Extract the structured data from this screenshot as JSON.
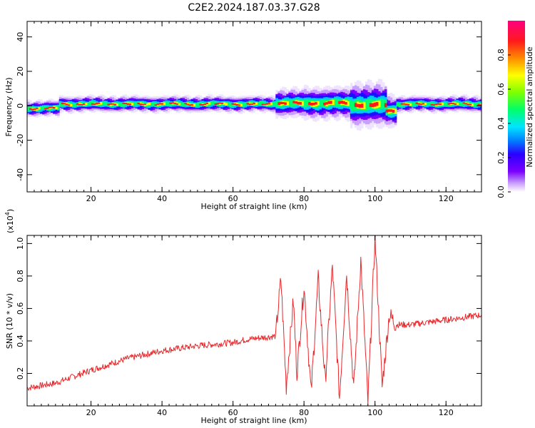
{
  "title": "C2E2.2024.187.03.37.G28",
  "colors": {
    "snr_line": "#e8282b",
    "spectrum_palette": [
      "#7a00ff",
      "#2a00ff",
      "#0080ff",
      "#00e5ff",
      "#00ff6a",
      "#7cff00",
      "#ffff00",
      "#ff8c00",
      "#ff1a1a",
      "#ff0080"
    ]
  },
  "chart_data": [
    {
      "type": "heatmap",
      "xlabel": "Height of straight line (km)",
      "ylabel": "Frequency (Hz)",
      "xlim": [
        2,
        130
      ],
      "ylim": [
        -50,
        49
      ],
      "xticks": [
        20,
        40,
        60,
        80,
        100,
        120
      ],
      "yticks": [
        40,
        20,
        0,
        -20,
        -40
      ],
      "colorbar": {
        "label": "Normalized spectral amplitude",
        "range": [
          0.0,
          1.0
        ],
        "ticks": [
          "0.0",
          "0.2",
          "0.4",
          "0.6",
          "0.8"
        ]
      },
      "band": {
        "segments": [
          {
            "x": [
              2,
              11
            ],
            "center": -1.5,
            "halfwidth": 2.5
          },
          {
            "x": [
              11,
              24
            ],
            "center": 1.0,
            "halfwidth": 2.5
          },
          {
            "x": [
              24,
              72
            ],
            "center": 1.0,
            "halfwidth": 2.5
          },
          {
            "x": [
              72,
              80
            ],
            "center": 1.5,
            "halfwidth": 4.5
          },
          {
            "x": [
              80,
              93
            ],
            "center": 1.5,
            "halfwidth": 5.0
          },
          {
            "x": [
              93,
              103
            ],
            "center": 0.5,
            "halfwidth": 7.0
          },
          {
            "x": [
              103,
              106
            ],
            "center": -3.0,
            "halfwidth": 5.0
          },
          {
            "x": [
              106,
              130
            ],
            "center": 1.0,
            "halfwidth": 2.5
          }
        ]
      }
    },
    {
      "type": "line",
      "xlabel": "Height of straight line (km)",
      "ylabel": "SNR (10 * v/v)",
      "yscale_label": "(x10",
      "yscale_exp": "4",
      "yscale_close": ")",
      "xlim": [
        2,
        130
      ],
      "ylim": [
        0.0,
        1.05
      ],
      "xticks": [
        20,
        40,
        60,
        80,
        100,
        120
      ],
      "yticks": [
        "0.2",
        "0.4",
        "0.6",
        "0.8",
        "1.0"
      ],
      "x": [
        2,
        10,
        20,
        30,
        40,
        50,
        60,
        64,
        68,
        72,
        73.5,
        75,
        77,
        78,
        80,
        82,
        84,
        86,
        88,
        90,
        92,
        94,
        96,
        98,
        100,
        102,
        104,
        106,
        110,
        120,
        130
      ],
      "y": [
        0.11,
        0.14,
        0.22,
        0.29,
        0.34,
        0.37,
        0.39,
        0.41,
        0.42,
        0.43,
        0.78,
        0.12,
        0.65,
        0.2,
        0.74,
        0.08,
        0.78,
        0.15,
        0.86,
        0.05,
        0.82,
        0.1,
        0.9,
        0.02,
        1.04,
        0.12,
        0.56,
        0.5,
        0.5,
        0.53,
        0.56
      ]
    }
  ]
}
